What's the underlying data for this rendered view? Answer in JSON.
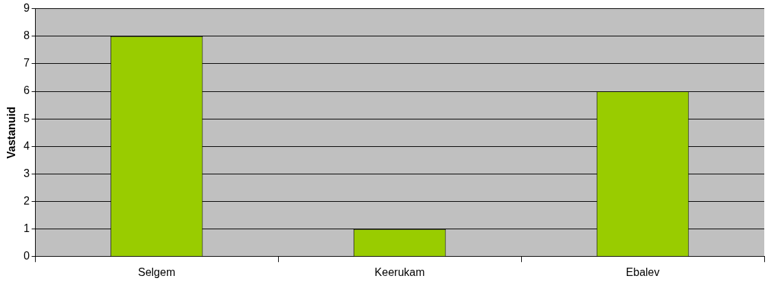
{
  "chart_data": {
    "type": "bar",
    "ylabel": "Vastanuid",
    "categories": [
      "Selgem",
      "Keerukam",
      "Ebalev"
    ],
    "values": [
      8,
      1,
      6
    ],
    "color": "#99cc00",
    "ylim": [
      0,
      9
    ],
    "yticks": [
      0,
      1,
      2,
      3,
      4,
      5,
      6,
      7,
      8,
      9
    ],
    "grid": "y",
    "legend": false
  }
}
